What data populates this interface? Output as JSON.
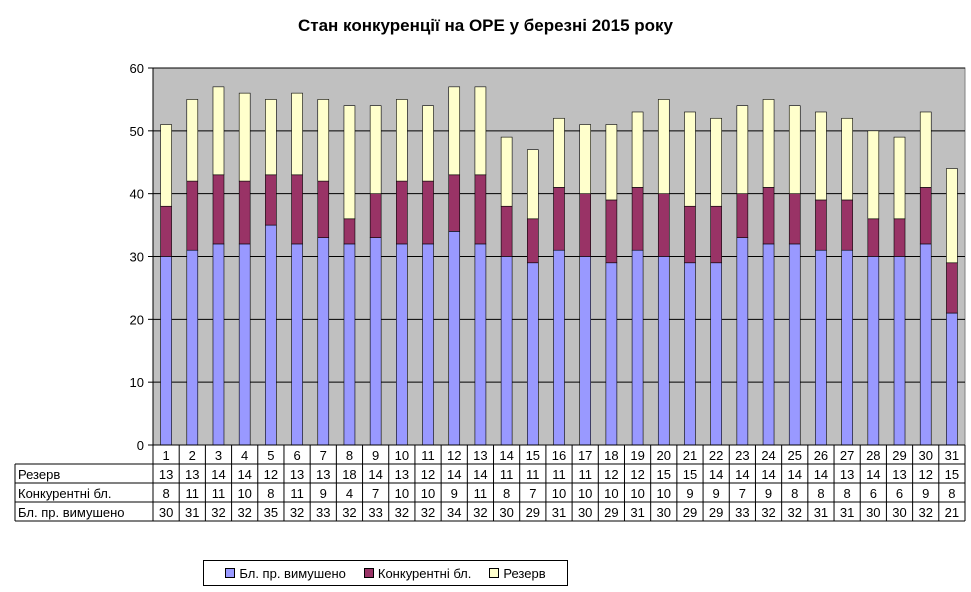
{
  "chart_data": {
    "type": "bar",
    "stacked": true,
    "title": "Стан конкуренції на ОРЕ  у березні 2015 року",
    "xlabel": "",
    "ylabel": "",
    "ylim": [
      0,
      60
    ],
    "yticks": [
      0,
      10,
      20,
      30,
      40,
      50,
      60
    ],
    "grid": true,
    "legend_position": "bottom",
    "data_table": true,
    "categories": [
      "1",
      "2",
      "3",
      "4",
      "5",
      "6",
      "7",
      "8",
      "9",
      "10",
      "11",
      "12",
      "13",
      "14",
      "15",
      "16",
      "17",
      "18",
      "19",
      "20",
      "21",
      "22",
      "23",
      "24",
      "25",
      "26",
      "27",
      "28",
      "29",
      "30",
      "31"
    ],
    "series": [
      {
        "name": "Бл. пр. вимушено",
        "color": "#9999ff",
        "values": [
          30,
          31,
          32,
          32,
          35,
          32,
          33,
          32,
          33,
          32,
          32,
          34,
          32,
          30,
          29,
          31,
          30,
          29,
          31,
          30,
          29,
          29,
          33,
          32,
          32,
          31,
          31,
          30,
          30,
          32,
          21
        ]
      },
      {
        "name": "Конкурентні бл.",
        "color": "#993366",
        "values": [
          8,
          11,
          11,
          10,
          8,
          11,
          9,
          4,
          7,
          10,
          10,
          9,
          11,
          8,
          7,
          10,
          10,
          10,
          10,
          10,
          9,
          9,
          7,
          9,
          8,
          8,
          8,
          6,
          6,
          9,
          8
        ]
      },
      {
        "name": "Резерв",
        "color": "#ffffcc",
        "values": [
          13,
          13,
          14,
          14,
          12,
          13,
          13,
          18,
          14,
          13,
          12,
          14,
          14,
          11,
          11,
          11,
          11,
          12,
          12,
          15,
          15,
          14,
          14,
          14,
          14,
          14,
          13,
          14,
          13,
          12,
          15
        ]
      }
    ],
    "table_rows": [
      "Резерв",
      "Конкурентні бл.",
      "Бл. пр. вимушено"
    ]
  }
}
